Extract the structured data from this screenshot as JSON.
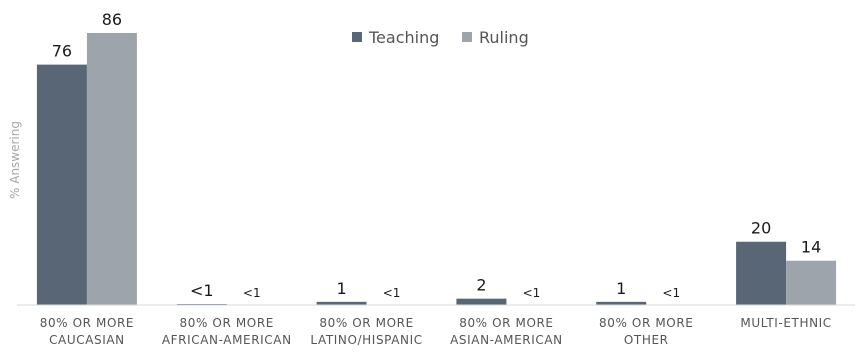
{
  "chart_data": {
    "type": "bar",
    "ylabel": "% Answering",
    "categories": [
      [
        "80% OR MORE",
        "CAUCASIAN"
      ],
      [
        "80% OR MORE",
        "AFRICAN-AMERICAN"
      ],
      [
        "80% OR MORE",
        "LATINO/HISPANIC"
      ],
      [
        "80% OR MORE",
        "ASIAN-AMERICAN"
      ],
      [
        "80% OR MORE",
        "OTHER"
      ],
      [
        "MULTI-ETHNIC"
      ]
    ],
    "series": [
      {
        "name": "Teaching",
        "color": "#586676",
        "values": [
          76,
          0.3,
          1,
          2,
          1,
          20
        ],
        "labels": [
          "76",
          "<1",
          "1",
          "2",
          "1",
          "20"
        ]
      },
      {
        "name": "Ruling",
        "color": "#9ea4ab",
        "values": [
          86,
          0,
          0,
          0,
          0,
          14
        ],
        "labels": [
          "86",
          "<1",
          "<1",
          "<1",
          "<1",
          "14"
        ]
      }
    ],
    "ylim": [
      0,
      86
    ],
    "grid": false,
    "legend_position": "top-center"
  }
}
